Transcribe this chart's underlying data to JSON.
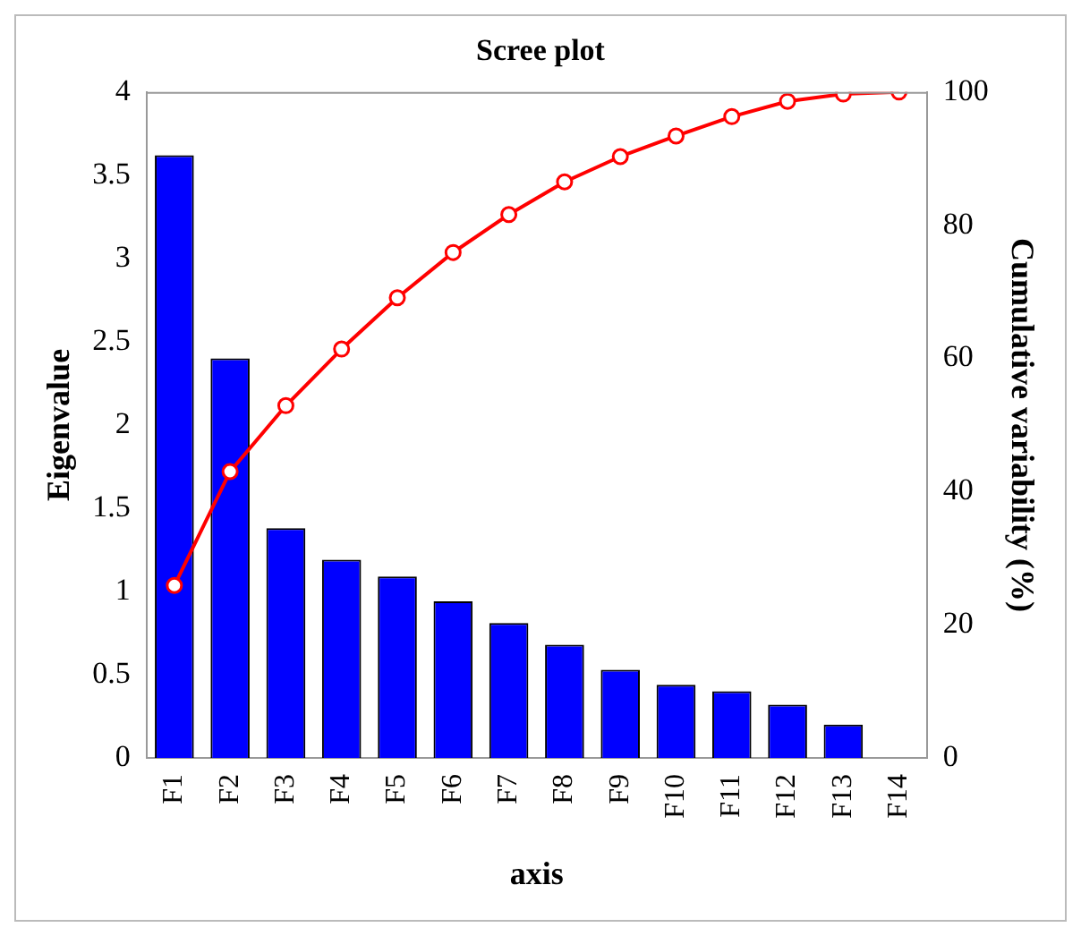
{
  "chart_data": {
    "type": "bar",
    "title": "Scree plot",
    "xlabel": "axis",
    "ylabel": "Eigenvalue",
    "y2label": "Cumulative variability (%)",
    "categories": [
      "F1",
      "F2",
      "F3",
      "F4",
      "F5",
      "F6",
      "F7",
      "F8",
      "F9",
      "F10",
      "F11",
      "F12",
      "F13",
      "F14"
    ],
    "series": [
      {
        "color": "#0000ff",
        "values": [
          3.62,
          2.4,
          1.38,
          1.19,
          1.09,
          0.94,
          0.81,
          0.68,
          0.53,
          0.44,
          0.4,
          0.32,
          0.2,
          0.0
        ]
      },
      {
        "type": "line",
        "axis": "y2",
        "color": "#ff0000",
        "values": [
          25.9,
          43.0,
          52.9,
          61.4,
          69.1,
          75.9,
          81.6,
          86.5,
          90.3,
          93.4,
          96.3,
          98.6,
          99.7,
          100
        ]
      }
    ],
    "ylim": [
      0,
      4
    ],
    "yticks": [
      0,
      0.5,
      1,
      1.5,
      2,
      2.5,
      3,
      3.5,
      4
    ],
    "y2lim": [
      0,
      100
    ],
    "y2ticks": [
      0,
      20,
      40,
      60,
      80,
      100
    ],
    "grid": false,
    "legend": false,
    "marker": "circle",
    "line_style": "solid"
  }
}
